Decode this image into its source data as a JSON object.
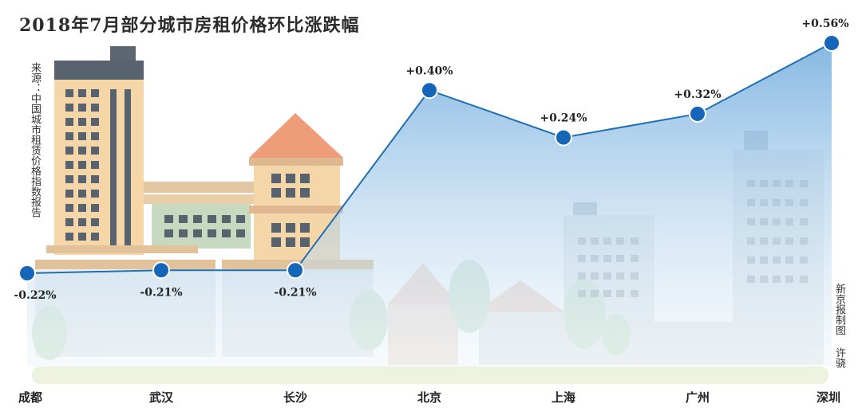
{
  "title": "2018年7月部分城市房租价格环比涨跌幅",
  "source_note": "来源：中国城市租赁价格指数报告",
  "credit": "新京报制图 许骁",
  "chart_data": {
    "type": "area",
    "title": "2018年7月部分城市房租价格环比涨跌幅",
    "categories": [
      "成都",
      "武汉",
      "长沙",
      "北京",
      "上海",
      "广州",
      "深圳"
    ],
    "values": [
      -0.22,
      -0.21,
      -0.21,
      0.4,
      0.24,
      0.32,
      0.56
    ],
    "value_labels": [
      "-0.22%",
      "-0.21%",
      "-0.21%",
      "+0.40%",
      "+0.24%",
      "+0.32%",
      "+0.56%"
    ],
    "ylabel": "",
    "xlabel": "",
    "unit": "%",
    "grid": false,
    "colors": {
      "line": "#1f6fb2",
      "marker": "#1565b8",
      "fill_top": "#7fb6e0",
      "fill_bottom": "#e6f1f8"
    }
  }
}
